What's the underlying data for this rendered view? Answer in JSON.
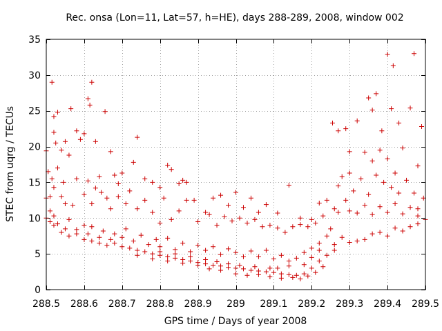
{
  "chart_data": {
    "type": "scatter",
    "title": "Rec. onsa (Lon=11, Lat=57, h=HE), days 288-289, 2008, window 002",
    "xlabel": "GPS time / Days of year 2008",
    "ylabel": "STEC from uqrg / TECUs",
    "xlim": [
      288.5,
      289.5
    ],
    "ylim": [
      0,
      35
    ],
    "xticks": [
      288.5,
      288.6,
      288.7,
      288.8,
      288.9,
      289.0,
      289.1,
      289.2,
      289.3,
      289.4,
      289.5
    ],
    "xtick_labels": [
      "288.5",
      "288.6",
      "288.7",
      "288.8",
      "288.9",
      "289",
      "289.1",
      "289.2",
      "289.3",
      "289.4",
      "289.5"
    ],
    "yticks": [
      0,
      5,
      10,
      15,
      20,
      25,
      30,
      35
    ],
    "ytick_labels": [
      "0",
      "5",
      "10",
      "15",
      "20",
      "25",
      "30",
      "35"
    ],
    "grid": true,
    "marker": "+",
    "color": "#cc0000",
    "points": [
      [
        288.515,
        29.0
      ],
      [
        288.52,
        24.2
      ],
      [
        288.53,
        24.8
      ],
      [
        288.5,
        19.4
      ],
      [
        288.505,
        16.5
      ],
      [
        288.51,
        13.0
      ],
      [
        288.515,
        15.5
      ],
      [
        288.52,
        22.0
      ],
      [
        288.525,
        20.5
      ],
      [
        288.53,
        17.0
      ],
      [
        288.54,
        19.5
      ],
      [
        288.545,
        15.0
      ],
      [
        288.55,
        20.7
      ],
      [
        288.56,
        18.8
      ],
      [
        288.565,
        25.3
      ],
      [
        288.58,
        22.2
      ],
      [
        288.59,
        21.0
      ],
      [
        288.6,
        21.8
      ],
      [
        288.61,
        26.7
      ],
      [
        288.615,
        25.8
      ],
      [
        288.62,
        29.0
      ],
      [
        288.63,
        20.7
      ],
      [
        288.64,
        15.8
      ],
      [
        288.655,
        24.9
      ],
      [
        288.67,
        19.3
      ],
      [
        288.68,
        16.0
      ],
      [
        288.69,
        14.8
      ],
      [
        288.7,
        16.3
      ],
      [
        288.73,
        17.8
      ],
      [
        288.74,
        21.3
      ],
      [
        288.76,
        15.5
      ],
      [
        288.78,
        15.0
      ],
      [
        288.8,
        14.3
      ],
      [
        288.82,
        17.4
      ],
      [
        288.83,
        16.8
      ],
      [
        288.85,
        14.8
      ],
      [
        288.86,
        15.3
      ],
      [
        288.87,
        15.0
      ],
      [
        288.89,
        12.5
      ],
      [
        288.92,
        10.8
      ],
      [
        288.94,
        12.8
      ],
      [
        288.96,
        13.2
      ],
      [
        288.98,
        11.8
      ],
      [
        289.0,
        13.6
      ],
      [
        289.02,
        11.5
      ],
      [
        289.04,
        12.8
      ],
      [
        289.06,
        10.8
      ],
      [
        289.08,
        11.9
      ],
      [
        289.11,
        10.7
      ],
      [
        289.14,
        14.6
      ],
      [
        289.17,
        10.0
      ],
      [
        289.2,
        9.8
      ],
      [
        289.22,
        12.1
      ],
      [
        289.24,
        12.5
      ],
      [
        289.255,
        23.3
      ],
      [
        289.27,
        22.2
      ],
      [
        289.28,
        15.8
      ],
      [
        289.29,
        22.5
      ],
      [
        289.3,
        19.3
      ],
      [
        289.32,
        23.6
      ],
      [
        289.34,
        19.2
      ],
      [
        289.35,
        26.8
      ],
      [
        289.36,
        25.1
      ],
      [
        289.37,
        27.4
      ],
      [
        289.38,
        19.5
      ],
      [
        289.385,
        22.2
      ],
      [
        289.4,
        32.9
      ],
      [
        289.41,
        25.3
      ],
      [
        289.415,
        31.3
      ],
      [
        289.43,
        23.3
      ],
      [
        289.44,
        19.8
      ],
      [
        289.46,
        25.4
      ],
      [
        289.47,
        33.0
      ],
      [
        289.48,
        17.3
      ],
      [
        289.49,
        22.8
      ],
      [
        289.5,
        9.8
      ],
      [
        289.495,
        12.8
      ],
      [
        289.48,
        11.3
      ],
      [
        289.47,
        13.5
      ],
      [
        289.45,
        15.3
      ],
      [
        289.43,
        13.5
      ],
      [
        289.42,
        16.3
      ],
      [
        289.41,
        14.3
      ],
      [
        289.4,
        18.3
      ],
      [
        289.39,
        15.0
      ],
      [
        289.37,
        16.0
      ],
      [
        289.36,
        18.0
      ],
      [
        289.35,
        13.3
      ],
      [
        289.33,
        15.5
      ],
      [
        289.31,
        13.8
      ],
      [
        289.3,
        16.3
      ],
      [
        289.29,
        12.5
      ],
      [
        289.27,
        14.5
      ],
      [
        289.26,
        11.3
      ],
      [
        289.25,
        8.5
      ],
      [
        288.5,
        12.8
      ],
      [
        288.51,
        11.0
      ],
      [
        288.52,
        14.3
      ],
      [
        288.54,
        13.0
      ],
      [
        288.55,
        12.0
      ],
      [
        288.57,
        11.8
      ],
      [
        288.58,
        15.5
      ],
      [
        288.6,
        13.3
      ],
      [
        288.61,
        15.2
      ],
      [
        288.62,
        12.0
      ],
      [
        288.63,
        14.2
      ],
      [
        288.645,
        13.6
      ],
      [
        288.66,
        12.8
      ],
      [
        288.67,
        11.3
      ],
      [
        288.69,
        13.0
      ],
      [
        288.71,
        12.0
      ],
      [
        288.72,
        13.8
      ],
      [
        288.74,
        11.3
      ],
      [
        288.76,
        12.5
      ],
      [
        288.78,
        10.8
      ],
      [
        288.8,
        9.3
      ],
      [
        288.81,
        12.8
      ],
      [
        288.83,
        9.8
      ],
      [
        288.85,
        11.0
      ],
      [
        288.87,
        12.5
      ],
      [
        288.9,
        9.5
      ],
      [
        288.93,
        10.5
      ],
      [
        288.95,
        9.0
      ],
      [
        288.97,
        10.2
      ],
      [
        288.99,
        9.6
      ],
      [
        289.01,
        10.0
      ],
      [
        289.03,
        9.3
      ],
      [
        289.05,
        9.8
      ],
      [
        289.07,
        8.8
      ],
      [
        289.09,
        9.0
      ],
      [
        289.11,
        8.6
      ],
      [
        289.13,
        8.0
      ],
      [
        289.15,
        8.8
      ],
      [
        289.17,
        9.1
      ],
      [
        289.19,
        8.8
      ],
      [
        289.21,
        9.3
      ],
      [
        289.23,
        10.3
      ],
      [
        289.27,
        10.8
      ],
      [
        289.3,
        11.0
      ],
      [
        289.32,
        10.7
      ],
      [
        289.34,
        11.8
      ],
      [
        289.36,
        10.5
      ],
      [
        289.38,
        11.6
      ],
      [
        289.4,
        10.8
      ],
      [
        289.42,
        12.0
      ],
      [
        289.44,
        10.6
      ],
      [
        289.46,
        11.5
      ],
      [
        289.48,
        10.3
      ],
      [
        288.5,
        10.0
      ],
      [
        288.51,
        9.5
      ],
      [
        288.52,
        10.3
      ],
      [
        288.53,
        9.2
      ],
      [
        288.55,
        8.5
      ],
      [
        288.56,
        9.8
      ],
      [
        288.58,
        8.4
      ],
      [
        288.6,
        9.0
      ],
      [
        288.61,
        7.8
      ],
      [
        288.62,
        8.8
      ],
      [
        288.64,
        7.3
      ],
      [
        288.65,
        8.2
      ],
      [
        288.67,
        7.0
      ],
      [
        288.68,
        7.8
      ],
      [
        288.7,
        7.3
      ],
      [
        288.71,
        8.5
      ],
      [
        288.73,
        6.8
      ],
      [
        288.75,
        7.6
      ],
      [
        288.77,
        6.3
      ],
      [
        288.79,
        7.0
      ],
      [
        288.8,
        6.0
      ],
      [
        288.82,
        7.2
      ],
      [
        288.84,
        5.6
      ],
      [
        288.86,
        6.5
      ],
      [
        288.88,
        5.3
      ],
      [
        288.9,
        6.2
      ],
      [
        288.92,
        5.5
      ],
      [
        288.94,
        6.0
      ],
      [
        288.96,
        4.9
      ],
      [
        288.98,
        5.7
      ],
      [
        289.0,
        5.2
      ],
      [
        289.02,
        4.6
      ],
      [
        289.04,
        5.4
      ],
      [
        289.06,
        4.6
      ],
      [
        289.08,
        5.5
      ],
      [
        289.1,
        4.3
      ],
      [
        289.12,
        4.8
      ],
      [
        289.14,
        4.0
      ],
      [
        289.16,
        4.4
      ],
      [
        289.18,
        5.2
      ],
      [
        289.2,
        5.8
      ],
      [
        289.22,
        6.5
      ],
      [
        289.24,
        7.5
      ],
      [
        289.26,
        6.3
      ],
      [
        289.28,
        7.3
      ],
      [
        289.3,
        6.6
      ],
      [
        289.32,
        6.8
      ],
      [
        289.34,
        7.0
      ],
      [
        289.36,
        7.8
      ],
      [
        289.38,
        8.0
      ],
      [
        289.4,
        7.5
      ],
      [
        289.42,
        8.6
      ],
      [
        289.44,
        8.2
      ],
      [
        289.46,
        8.8
      ],
      [
        289.48,
        9.2
      ],
      [
        288.52,
        9.0
      ],
      [
        288.54,
        8.0
      ],
      [
        288.56,
        7.5
      ],
      [
        288.58,
        7.8
      ],
      [
        288.6,
        7.0
      ],
      [
        288.62,
        6.8
      ],
      [
        288.64,
        6.5
      ],
      [
        288.66,
        6.2
      ],
      [
        288.68,
        6.5
      ],
      [
        288.7,
        6.0
      ],
      [
        288.72,
        5.8
      ],
      [
        288.74,
        5.5
      ],
      [
        288.76,
        5.3
      ],
      [
        288.78,
        5.0
      ],
      [
        288.8,
        4.8
      ],
      [
        288.82,
        4.6
      ],
      [
        288.84,
        4.4
      ],
      [
        288.86,
        4.2
      ],
      [
        288.88,
        4.0
      ],
      [
        288.9,
        3.8
      ],
      [
        288.92,
        3.6
      ],
      [
        288.94,
        3.4
      ],
      [
        288.96,
        3.3
      ],
      [
        288.98,
        3.1
      ],
      [
        289.0,
        3.0
      ],
      [
        289.02,
        2.9
      ],
      [
        289.04,
        2.7
      ],
      [
        289.06,
        2.6
      ],
      [
        289.08,
        2.5
      ],
      [
        289.1,
        2.4
      ],
      [
        289.12,
        2.2
      ],
      [
        289.14,
        2.1
      ],
      [
        289.16,
        2.0
      ],
      [
        289.18,
        2.2
      ],
      [
        289.2,
        3.0
      ],
      [
        289.22,
        4.0
      ],
      [
        289.24,
        4.8
      ],
      [
        289.26,
        5.5
      ],
      [
        288.74,
        4.8
      ],
      [
        288.78,
        4.3
      ],
      [
        288.82,
        4.0
      ],
      [
        288.86,
        3.7
      ],
      [
        288.9,
        3.4
      ],
      [
        288.93,
        2.9
      ],
      [
        288.96,
        2.7
      ],
      [
        289.0,
        2.2
      ],
      [
        289.03,
        2.0
      ],
      [
        289.06,
        2.1
      ],
      [
        289.09,
        1.8
      ],
      [
        289.12,
        1.6
      ],
      [
        289.15,
        1.7
      ],
      [
        289.17,
        1.5
      ],
      [
        289.19,
        1.9
      ],
      [
        289.21,
        2.4
      ],
      [
        289.23,
        3.2
      ],
      [
        289.11,
        3.0
      ],
      [
        289.14,
        3.3
      ],
      [
        289.18,
        3.5
      ],
      [
        289.2,
        4.5
      ],
      [
        289.22,
        5.5
      ],
      [
        288.8,
        5.3
      ],
      [
        288.84,
        5.0
      ],
      [
        288.88,
        4.6
      ],
      [
        288.92,
        4.2
      ],
      [
        288.95,
        3.9
      ],
      [
        288.98,
        3.6
      ],
      [
        289.01,
        3.4
      ],
      [
        289.05,
        3.2
      ],
      [
        289.09,
        3.0
      ]
    ]
  }
}
